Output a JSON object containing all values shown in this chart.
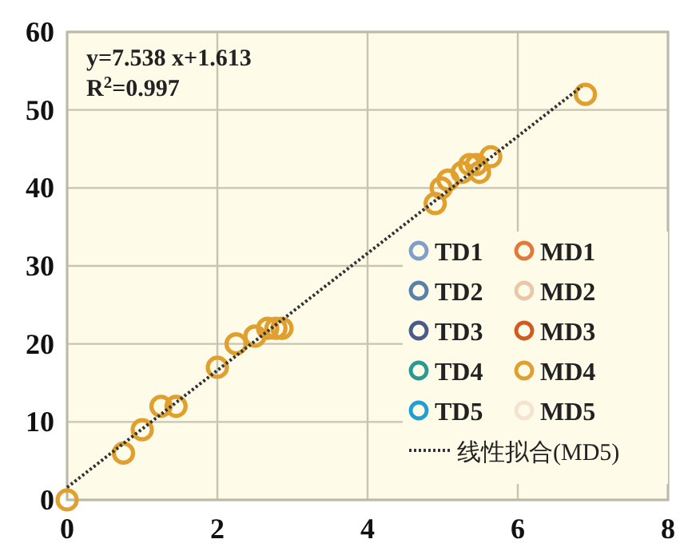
{
  "chart_data": {
    "type": "scatter",
    "x": [
      0,
      0.75,
      1.0,
      1.25,
      1.45,
      2.0,
      2.25,
      2.5,
      2.67,
      2.78,
      2.86,
      4.9,
      4.98,
      5.07,
      5.26,
      5.36,
      5.45,
      5.49,
      5.64,
      6.9
    ],
    "series": [
      {
        "name": "TD1",
        "color": "#7f9fc8",
        "values": [
          null,
          null,
          null,
          null,
          null,
          null,
          null,
          null,
          null,
          null,
          null,
          null,
          null,
          null,
          null,
          null,
          null,
          null,
          null,
          null
        ]
      },
      {
        "name": "MD1",
        "color": "#e07a3a",
        "values": [
          null,
          null,
          null,
          null,
          null,
          null,
          null,
          null,
          null,
          null,
          null,
          null,
          null,
          null,
          null,
          null,
          null,
          null,
          null,
          null
        ]
      },
      {
        "name": "TD2",
        "color": "#5a7fa8",
        "values": [
          null,
          null,
          null,
          null,
          null,
          null,
          null,
          null,
          null,
          null,
          null,
          null,
          null,
          null,
          null,
          null,
          null,
          null,
          null,
          null
        ]
      },
      {
        "name": "MD2",
        "color": "#e8c8a8",
        "values": [
          null,
          null,
          null,
          null,
          null,
          null,
          null,
          null,
          null,
          null,
          null,
          null,
          null,
          null,
          null,
          null,
          null,
          null,
          null,
          null
        ]
      },
      {
        "name": "TD3",
        "color": "#4a5a8a",
        "values": [
          null,
          null,
          null,
          null,
          null,
          null,
          null,
          null,
          null,
          null,
          null,
          null,
          null,
          null,
          null,
          null,
          null,
          null,
          null,
          null
        ]
      },
      {
        "name": "MD3",
        "color": "#d05a20",
        "values": [
          null,
          null,
          null,
          null,
          null,
          null,
          null,
          null,
          null,
          null,
          null,
          null,
          null,
          null,
          null,
          null,
          null,
          null,
          null,
          null
        ]
      },
      {
        "name": "TD4",
        "color": "#2a9a90",
        "values": [
          null,
          null,
          null,
          null,
          null,
          null,
          null,
          null,
          null,
          null,
          null,
          null,
          null,
          null,
          null,
          null,
          null,
          null,
          null,
          null
        ]
      },
      {
        "name": "MD4",
        "color": "#e0a030",
        "values": [
          0,
          6,
          9,
          12,
          12,
          17,
          20,
          21,
          22,
          22,
          22,
          38,
          40,
          41,
          42,
          43,
          43,
          42,
          44,
          52
        ]
      },
      {
        "name": "TD5",
        "color": "#20a0d0",
        "values": [
          null,
          null,
          null,
          null,
          null,
          null,
          null,
          null,
          null,
          null,
          null,
          null,
          null,
          null,
          null,
          null,
          null,
          null,
          null,
          null
        ]
      },
      {
        "name": "MD5",
        "color": "#f3e3cf",
        "values": [
          null,
          null,
          null,
          null,
          null,
          null,
          null,
          null,
          null,
          null,
          null,
          null,
          null,
          null,
          null,
          null,
          null,
          null,
          null,
          null
        ]
      },
      {
        "name": "线性拟合(MD5)",
        "type": "line",
        "color": "#333333",
        "line_style": "dotted",
        "marker": "none",
        "x": [
          0,
          6.85
        ],
        "values": [
          1.6,
          53
        ]
      }
    ],
    "annotations": [
      "y=7.538 x+1.613",
      "R$^{2}$=0.997"
    ],
    "marker": "circle",
    "xlim": [
      0,
      8
    ],
    "xticks": [
      0,
      2,
      4,
      6,
      8
    ],
    "ylim": [
      0,
      60
    ],
    "yticks": [
      0,
      10,
      20,
      30,
      40,
      50,
      60
    ],
    "grid": true,
    "legend": "bottom right"
  }
}
